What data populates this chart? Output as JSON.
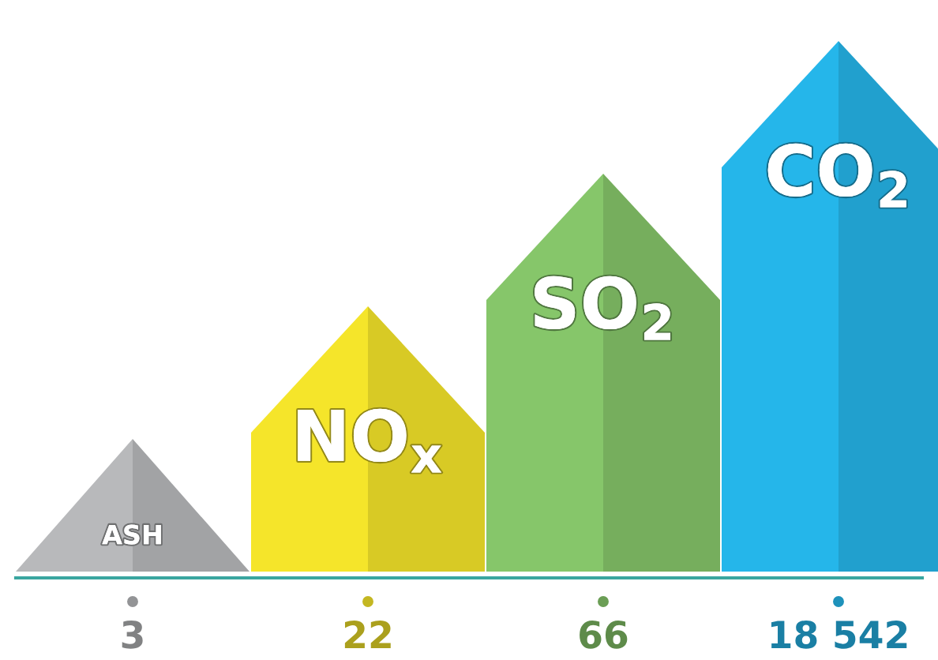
{
  "chart_data": {
    "type": "other",
    "categories": [
      "ASH",
      "NO$_{x}$",
      "SO$_{2}$",
      "CO$_{2}$"
    ],
    "values": [
      3,
      22,
      66,
      18542
    ],
    "data_labels": true,
    "colors": [
      "#b8b9bb",
      "#f5e52a",
      "#86c66a",
      "#25b6ea"
    ]
  }
}
